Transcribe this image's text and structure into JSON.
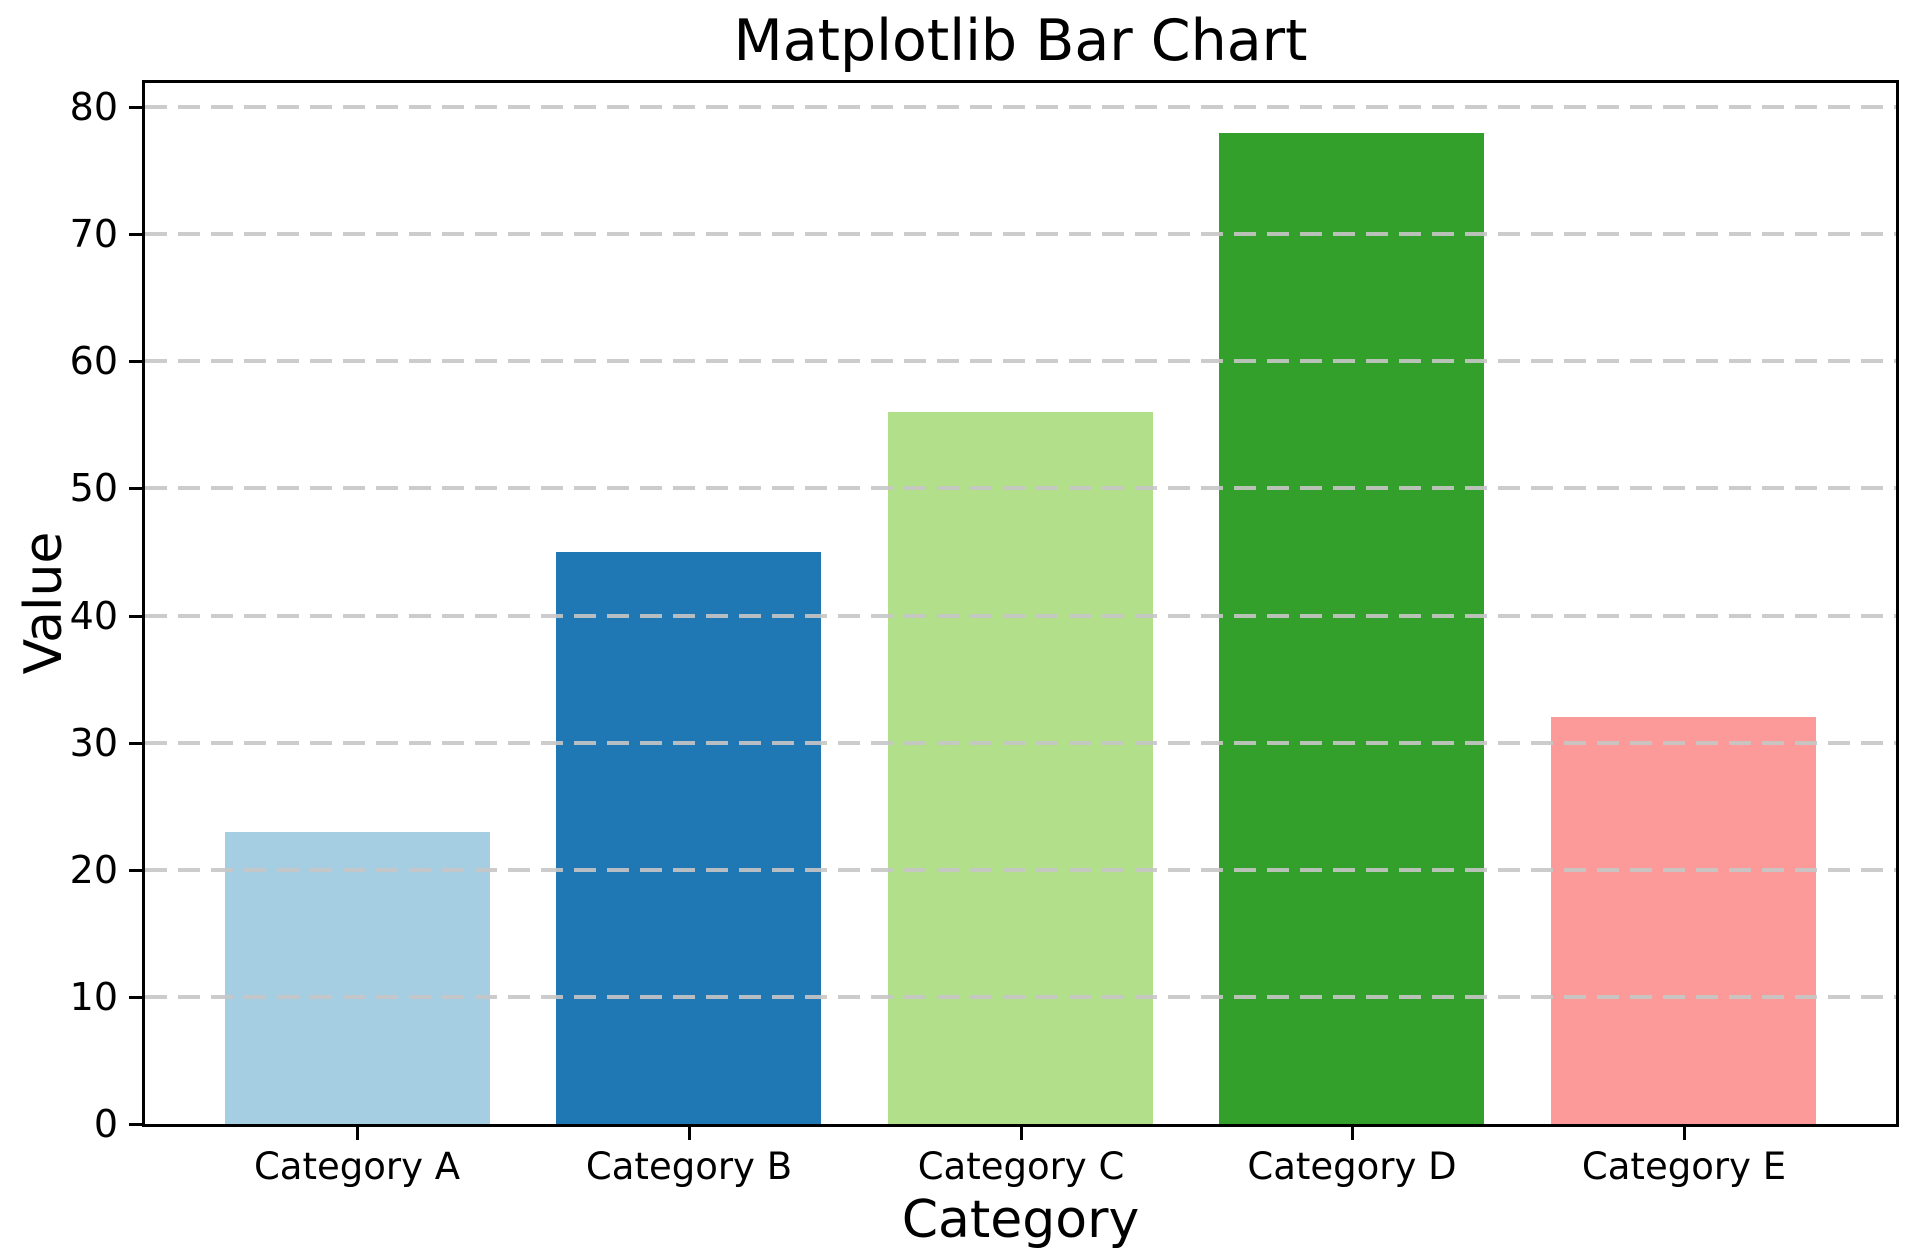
{
  "chart_data": {
    "type": "bar",
    "title": "Matplotlib Bar Chart",
    "xlabel": "Category",
    "ylabel": "Value",
    "categories": [
      "Category A",
      "Category B",
      "Category C",
      "Category D",
      "Category E"
    ],
    "values": [
      23,
      45,
      56,
      78,
      32
    ],
    "bar_colors": [
      "#a6cee3",
      "#1f78b4",
      "#b2df8a",
      "#33a02c",
      "#fb9a99"
    ],
    "yticks": [
      0,
      10,
      20,
      30,
      40,
      50,
      60,
      70,
      80
    ],
    "ylim": [
      0,
      81.9
    ],
    "grid": "horizontal dashed gray lines drawn over bars",
    "gridline_color": "#c6c6c6",
    "background_color": "#ffffff",
    "text_color": "#000000",
    "legend": "none",
    "bar_width_fraction": 0.8
  }
}
